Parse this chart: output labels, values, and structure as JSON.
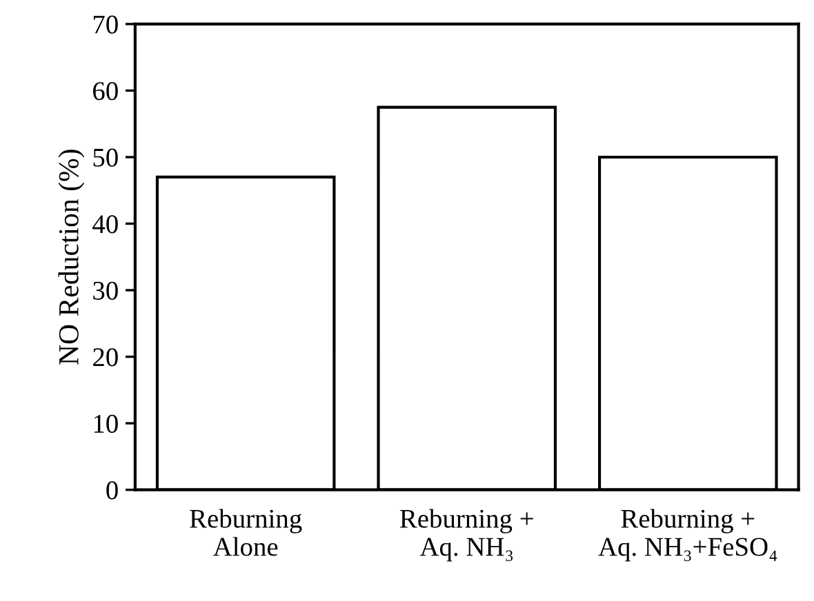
{
  "chart_data": {
    "type": "bar",
    "ylabel": "NO Reduction (%)",
    "categories": [
      "Reburning\nAlone",
      "Reburning +\nAq. NH₃",
      "Reburning +\nAq. NH₃+FeSO₄"
    ],
    "values": [
      47,
      57.5,
      50
    ],
    "color": "#ffffff",
    "ylim": [
      0,
      70
    ],
    "yticks": [
      0,
      10,
      20,
      30,
      40,
      50,
      60,
      70
    ],
    "grid": false,
    "legend": false
  }
}
